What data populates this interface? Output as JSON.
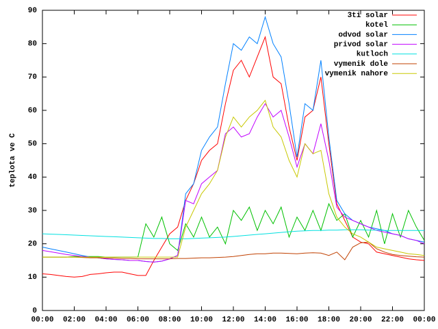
{
  "chart_data": {
    "type": "line",
    "ylabel": "teplota ve C",
    "x": [
      0,
      0.5,
      1,
      1.5,
      2,
      2.5,
      3,
      3.5,
      4,
      4.5,
      5,
      5.5,
      6,
      6.5,
      7,
      7.5,
      8,
      8.5,
      9,
      9.5,
      10,
      10.5,
      11,
      11.5,
      12,
      12.5,
      13,
      13.5,
      14,
      14.5,
      15,
      15.5,
      16,
      16.5,
      17,
      17.5,
      18,
      18.5,
      19,
      19.5,
      20,
      20.5,
      21,
      21.5,
      22,
      22.5,
      23,
      23.5,
      24
    ],
    "xlim": [
      0,
      24
    ],
    "xticks": [
      {
        "value": 0,
        "label": "00:00"
      },
      {
        "value": 2,
        "label": "02:00"
      },
      {
        "value": 4,
        "label": "04:00"
      },
      {
        "value": 6,
        "label": "06:00"
      },
      {
        "value": 8,
        "label": "08:00"
      },
      {
        "value": 10,
        "label": "10:00"
      },
      {
        "value": 12,
        "label": "12:00"
      },
      {
        "value": 14,
        "label": "14:00"
      },
      {
        "value": 16,
        "label": "16:00"
      },
      {
        "value": 18,
        "label": "18:00"
      },
      {
        "value": 20,
        "label": "20:00"
      },
      {
        "value": 22,
        "label": "22:00"
      },
      {
        "value": 24,
        "label": "00:00"
      }
    ],
    "ylim": [
      0,
      90
    ],
    "yticks": [
      0,
      10,
      20,
      30,
      40,
      50,
      60,
      70,
      80,
      90
    ],
    "legend": "top-right",
    "series": [
      {
        "name": "3ti solar",
        "color": "#ff0000",
        "values": [
          11,
          10.8,
          10.5,
          10.2,
          10,
          10.2,
          10.8,
          11,
          11.3,
          11.5,
          11.5,
          11,
          10.5,
          10.5,
          15,
          19,
          23,
          25,
          33,
          38,
          45,
          48,
          50,
          62,
          72,
          75,
          70,
          76,
          82,
          70,
          68,
          55,
          45,
          58,
          60,
          70,
          50,
          32,
          27,
          22,
          20.5,
          20,
          17.5,
          17,
          16.5,
          16,
          15.5,
          15.2,
          15
        ]
      },
      {
        "name": "kotel",
        "color": "#00c000",
        "values": [
          16,
          16,
          16,
          16,
          16.2,
          16.2,
          16.2,
          16.2,
          16,
          16,
          16,
          16,
          16,
          26,
          22,
          28,
          20,
          18,
          26,
          22,
          28,
          22,
          25,
          20,
          30,
          27,
          31,
          24,
          30,
          26,
          31,
          22,
          28,
          24,
          30,
          24,
          32,
          27,
          29,
          22,
          27,
          22,
          30,
          20,
          29,
          22,
          30,
          25,
          21
        ]
      },
      {
        "name": "odvod solar",
        "color": "#0080ff",
        "values": [
          19,
          18.5,
          18,
          17.5,
          17,
          16.5,
          16,
          15.8,
          15.5,
          15.3,
          15.2,
          15,
          15,
          14.7,
          14.5,
          14.8,
          15.5,
          16.5,
          35,
          38,
          48,
          52,
          55,
          68,
          80,
          78,
          82,
          80,
          88,
          80,
          76,
          62,
          46,
          62,
          60,
          75,
          52,
          33,
          29,
          27,
          26,
          25,
          24.5,
          24,
          23,
          22.5,
          21.5,
          21,
          20.5
        ]
      },
      {
        "name": "privod solar",
        "color": "#c000ff",
        "values": [
          18,
          17.6,
          17.2,
          16.8,
          16.5,
          16.2,
          16,
          15.8,
          15.5,
          15.3,
          15.2,
          15,
          15,
          14.7,
          14.5,
          14.8,
          15.5,
          16.5,
          33,
          32,
          38,
          40,
          42,
          53,
          55,
          52,
          53,
          58,
          62,
          58,
          60,
          52,
          43,
          50,
          47,
          56,
          45,
          31,
          28,
          27,
          26,
          25,
          24,
          23.5,
          23,
          22.5,
          21.5,
          21,
          20
        ]
      },
      {
        "name": "kutloch",
        "color": "#00e0e0",
        "values": [
          23,
          22.9,
          22.8,
          22.7,
          22.6,
          22.5,
          22.4,
          22.3,
          22.2,
          22.1,
          22,
          21.9,
          21.8,
          21.7,
          21.6,
          21.6,
          21.5,
          21.5,
          21.5,
          21.6,
          21.7,
          21.8,
          21.9,
          22,
          22.2,
          22.4,
          22.6,
          22.8,
          23,
          23.2,
          23.4,
          23.6,
          23.8,
          23.9,
          24,
          24,
          24.1,
          24.1,
          24.2,
          24.2,
          24.2,
          24.1,
          24.1,
          24,
          24,
          24,
          24,
          24,
          24
        ]
      },
      {
        "name": "vymenik dole",
        "color": "#c04000",
        "values": [
          16,
          16,
          16,
          16,
          16,
          15.9,
          15.8,
          15.8,
          15.7,
          15.7,
          15.6,
          15.6,
          15.5,
          15.5,
          15.5,
          15.5,
          15.5,
          15.6,
          15.6,
          15.7,
          15.8,
          15.8,
          15.9,
          16,
          16.2,
          16.5,
          16.8,
          17,
          17,
          17.2,
          17.2,
          17.1,
          17,
          17.2,
          17.3,
          17.2,
          16.5,
          17.5,
          15.2,
          19,
          20.3,
          20.5,
          18.5,
          17.5,
          16.8,
          16.5,
          16.3,
          16.1,
          16
        ]
      },
      {
        "name": "vymenik nahore",
        "color": "#c8c800",
        "values": [
          16,
          16,
          16,
          16,
          16,
          16,
          16,
          16,
          16,
          16,
          16,
          16,
          16,
          16,
          16,
          16,
          16,
          16,
          25,
          30,
          35,
          38,
          42,
          52,
          58,
          55,
          58,
          60,
          63,
          55,
          52,
          45,
          40,
          50,
          47,
          48,
          35,
          28,
          25,
          23,
          22,
          20.5,
          19,
          18.5,
          18,
          17.5,
          17,
          16.8,
          16.5
        ]
      }
    ]
  }
}
